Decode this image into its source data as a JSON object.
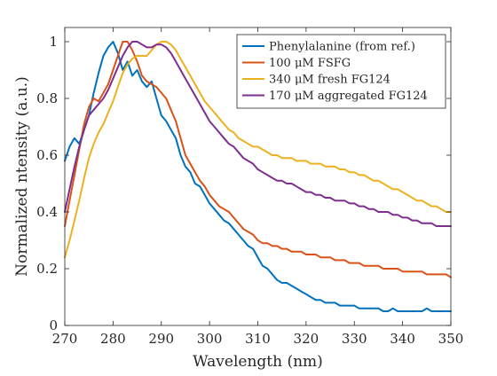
{
  "chart_data": {
    "type": "line",
    "title": "",
    "xlabel": "Wavelength (nm)",
    "ylabel": "Normalized ntensity (a.u.)",
    "xlim": [
      270,
      350
    ],
    "ylim": [
      0,
      1.05
    ],
    "xticks": [
      270,
      280,
      290,
      300,
      310,
      320,
      330,
      340,
      350
    ],
    "yticks": [
      0,
      0.2,
      0.4,
      0.6,
      0.8,
      1
    ],
    "ytick_labels": [
      "0",
      "0.2",
      "0.4",
      "0.6",
      "0.8",
      "1"
    ],
    "grid": false,
    "box": true,
    "legend_position": "top-right",
    "series": [
      {
        "name": "Phenylalanine (from ref.)",
        "color": "#0072BD",
        "x": [
          270,
          271,
          272,
          273,
          274,
          275,
          276,
          277,
          278,
          279,
          280,
          281,
          282,
          283,
          284,
          285,
          286,
          287,
          288,
          289,
          290,
          291,
          292,
          293,
          294,
          295,
          296,
          297,
          298,
          299,
          300,
          301,
          302,
          303,
          304,
          305,
          306,
          307,
          308,
          309,
          310,
          311,
          312,
          313,
          314,
          315,
          316,
          317,
          318,
          319,
          320,
          321,
          322,
          323,
          324,
          325,
          326,
          327,
          328,
          329,
          330,
          331,
          332,
          333,
          334,
          335,
          336,
          337,
          338,
          339,
          340,
          341,
          342,
          343,
          344,
          345,
          346,
          347,
          348,
          349,
          350
        ],
        "y": [
          0.58,
          0.63,
          0.66,
          0.64,
          0.69,
          0.74,
          0.82,
          0.89,
          0.95,
          0.98,
          1.0,
          0.96,
          0.9,
          0.93,
          0.88,
          0.9,
          0.86,
          0.84,
          0.86,
          0.8,
          0.74,
          0.72,
          0.69,
          0.66,
          0.6,
          0.56,
          0.54,
          0.5,
          0.49,
          0.46,
          0.43,
          0.41,
          0.39,
          0.37,
          0.36,
          0.34,
          0.32,
          0.3,
          0.28,
          0.27,
          0.24,
          0.21,
          0.2,
          0.18,
          0.16,
          0.15,
          0.15,
          0.14,
          0.13,
          0.12,
          0.11,
          0.1,
          0.09,
          0.09,
          0.08,
          0.08,
          0.08,
          0.07,
          0.07,
          0.07,
          0.07,
          0.06,
          0.06,
          0.06,
          0.06,
          0.06,
          0.05,
          0.05,
          0.06,
          0.05,
          0.05,
          0.05,
          0.05,
          0.05,
          0.05,
          0.06,
          0.05,
          0.05,
          0.05,
          0.05,
          0.05
        ]
      },
      {
        "name": "100 μM FSFG",
        "color": "#D95319",
        "x": [
          270,
          271,
          272,
          273,
          274,
          275,
          276,
          277,
          278,
          279,
          280,
          281,
          282,
          283,
          284,
          285,
          286,
          287,
          288,
          289,
          290,
          291,
          292,
          293,
          294,
          295,
          296,
          297,
          298,
          299,
          300,
          301,
          302,
          303,
          304,
          305,
          306,
          307,
          308,
          309,
          310,
          311,
          312,
          313,
          314,
          315,
          316,
          317,
          318,
          319,
          320,
          321,
          322,
          323,
          324,
          325,
          326,
          327,
          328,
          329,
          330,
          331,
          332,
          333,
          334,
          335,
          336,
          337,
          338,
          339,
          340,
          341,
          342,
          343,
          344,
          345,
          346,
          347,
          348,
          349,
          350
        ],
        "y": [
          0.35,
          0.44,
          0.53,
          0.62,
          0.71,
          0.77,
          0.8,
          0.79,
          0.82,
          0.85,
          0.9,
          0.95,
          1.0,
          1.0,
          0.97,
          0.93,
          0.88,
          0.86,
          0.85,
          0.84,
          0.82,
          0.8,
          0.76,
          0.72,
          0.66,
          0.6,
          0.57,
          0.54,
          0.51,
          0.49,
          0.46,
          0.44,
          0.42,
          0.41,
          0.4,
          0.38,
          0.36,
          0.34,
          0.33,
          0.32,
          0.3,
          0.29,
          0.29,
          0.28,
          0.28,
          0.27,
          0.27,
          0.26,
          0.26,
          0.26,
          0.25,
          0.25,
          0.25,
          0.24,
          0.24,
          0.24,
          0.23,
          0.23,
          0.23,
          0.22,
          0.22,
          0.22,
          0.21,
          0.21,
          0.21,
          0.21,
          0.2,
          0.2,
          0.2,
          0.2,
          0.19,
          0.19,
          0.19,
          0.19,
          0.19,
          0.18,
          0.18,
          0.18,
          0.18,
          0.18,
          0.17
        ]
      },
      {
        "name": "340 μM fresh FG124",
        "color": "#EDB120",
        "x": [
          270,
          271,
          272,
          273,
          274,
          275,
          276,
          277,
          278,
          279,
          280,
          281,
          282,
          283,
          284,
          285,
          286,
          287,
          288,
          289,
          290,
          291,
          292,
          293,
          294,
          295,
          296,
          297,
          298,
          299,
          300,
          301,
          302,
          303,
          304,
          305,
          306,
          307,
          308,
          309,
          310,
          311,
          312,
          313,
          314,
          315,
          316,
          317,
          318,
          319,
          320,
          321,
          322,
          323,
          324,
          325,
          326,
          327,
          328,
          329,
          330,
          331,
          332,
          333,
          334,
          335,
          336,
          337,
          338,
          339,
          340,
          341,
          342,
          343,
          344,
          345,
          346,
          347,
          348,
          349,
          350
        ],
        "y": [
          0.24,
          0.3,
          0.37,
          0.44,
          0.52,
          0.59,
          0.64,
          0.68,
          0.71,
          0.75,
          0.79,
          0.84,
          0.89,
          0.92,
          0.94,
          0.95,
          0.95,
          0.95,
          0.97,
          0.99,
          1.0,
          1.0,
          0.99,
          0.97,
          0.94,
          0.91,
          0.88,
          0.85,
          0.82,
          0.79,
          0.77,
          0.75,
          0.73,
          0.71,
          0.69,
          0.68,
          0.66,
          0.65,
          0.64,
          0.63,
          0.63,
          0.62,
          0.61,
          0.6,
          0.6,
          0.59,
          0.59,
          0.59,
          0.58,
          0.58,
          0.58,
          0.57,
          0.57,
          0.57,
          0.56,
          0.56,
          0.56,
          0.55,
          0.55,
          0.54,
          0.54,
          0.53,
          0.53,
          0.52,
          0.51,
          0.51,
          0.5,
          0.49,
          0.48,
          0.48,
          0.47,
          0.46,
          0.45,
          0.44,
          0.44,
          0.43,
          0.42,
          0.42,
          0.41,
          0.4,
          0.4
        ]
      },
      {
        "name": "170 μM aggregated FG124",
        "color": "#7E2F8E",
        "x": [
          270,
          271,
          272,
          273,
          274,
          275,
          276,
          277,
          278,
          279,
          280,
          281,
          282,
          283,
          284,
          285,
          286,
          287,
          288,
          289,
          290,
          291,
          292,
          293,
          294,
          295,
          296,
          297,
          298,
          299,
          300,
          301,
          302,
          303,
          304,
          305,
          306,
          307,
          308,
          309,
          310,
          311,
          312,
          313,
          314,
          315,
          316,
          317,
          318,
          319,
          320,
          321,
          322,
          323,
          324,
          325,
          326,
          327,
          328,
          329,
          330,
          331,
          332,
          333,
          334,
          335,
          336,
          337,
          338,
          339,
          340,
          341,
          342,
          343,
          344,
          345,
          346,
          347,
          348,
          349,
          350
        ],
        "y": [
          0.4,
          0.48,
          0.56,
          0.63,
          0.69,
          0.74,
          0.76,
          0.78,
          0.8,
          0.83,
          0.87,
          0.91,
          0.95,
          0.98,
          1.0,
          1.0,
          0.99,
          0.98,
          0.98,
          0.99,
          0.99,
          0.98,
          0.96,
          0.93,
          0.9,
          0.87,
          0.84,
          0.81,
          0.78,
          0.75,
          0.72,
          0.7,
          0.68,
          0.66,
          0.64,
          0.63,
          0.61,
          0.59,
          0.58,
          0.57,
          0.55,
          0.54,
          0.53,
          0.52,
          0.51,
          0.51,
          0.5,
          0.5,
          0.49,
          0.48,
          0.47,
          0.47,
          0.46,
          0.46,
          0.45,
          0.45,
          0.44,
          0.44,
          0.44,
          0.43,
          0.43,
          0.42,
          0.42,
          0.41,
          0.41,
          0.4,
          0.4,
          0.4,
          0.39,
          0.39,
          0.38,
          0.38,
          0.37,
          0.37,
          0.36,
          0.36,
          0.36,
          0.35,
          0.35,
          0.35,
          0.35
        ]
      }
    ]
  }
}
